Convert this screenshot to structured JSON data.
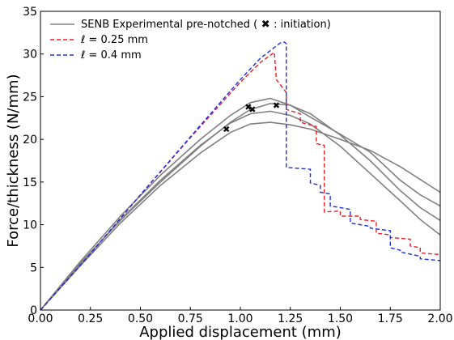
{
  "chart_data": {
    "type": "line",
    "xlabel": "Applied displacement (mm)",
    "ylabel": "Force/thickness (N/mm)",
    "xlim": [
      0,
      2.0
    ],
    "ylim": [
      0,
      35
    ],
    "x_ticks": [
      "0.00",
      "0.25",
      "0.50",
      "0.75",
      "1.00",
      "1.25",
      "1.50",
      "1.75",
      "2.00"
    ],
    "y_ticks": [
      "0",
      "5",
      "10",
      "15",
      "20",
      "25",
      "30",
      "35"
    ],
    "grid": false,
    "legend_position": "top-left",
    "legend": [
      {
        "label": "SENB Experimental pre-notched (",
        "marker_label": "✖",
        "label_tail": ": initiation)",
        "color": "#808080",
        "style": "solid"
      },
      {
        "label": "ℓ = 0.25 mm",
        "color": "#e8202a",
        "style": "dashed"
      },
      {
        "label": "ℓ = 0.4 mm",
        "color": "#1f2ee0",
        "style": "dashed"
      }
    ],
    "series": [
      {
        "name": "SENB Experimental pre-notched",
        "color": "#808080",
        "style": "solid",
        "x": [
          0,
          0.2,
          0.4,
          0.6,
          0.8,
          0.95,
          1.05,
          1.15,
          1.25,
          1.35,
          1.5,
          1.65,
          1.8,
          1.9,
          2.0
        ],
        "y": [
          0,
          5.5,
          10.5,
          15,
          19.2,
          22.0,
          23.5,
          24.2,
          24.0,
          23.0,
          20.5,
          17.5,
          14.0,
          12.0,
          10.5
        ]
      },
      {
        "name": "SENB Experimental pre-notched",
        "color": "#808080",
        "style": "solid",
        "x": [
          0,
          0.2,
          0.4,
          0.6,
          0.8,
          0.95,
          1.05,
          1.15,
          1.25,
          1.35,
          1.5,
          1.65,
          1.8,
          1.9,
          2.0
        ],
        "y": [
          0,
          5.2,
          10.2,
          14.6,
          18.4,
          20.8,
          21.8,
          22.0,
          21.7,
          21.2,
          20.0,
          18.7,
          16.8,
          15.3,
          13.8
        ]
      },
      {
        "name": "SENB Experimental pre-notched",
        "color": "#808080",
        "style": "solid",
        "x": [
          0,
          0.2,
          0.4,
          0.6,
          0.8,
          0.95,
          1.05,
          1.15,
          1.25,
          1.35,
          1.5,
          1.65,
          1.8,
          1.9,
          2.0
        ],
        "y": [
          0,
          5.7,
          11.0,
          15.8,
          20.0,
          22.8,
          24.3,
          24.8,
          24.0,
          22.6,
          20.6,
          18.5,
          15.2,
          13.5,
          12.2
        ]
      },
      {
        "name": "SENB Experimental pre-notched",
        "color": "#808080",
        "style": "solid",
        "x": [
          0,
          0.2,
          0.4,
          0.6,
          0.8,
          0.95,
          1.05,
          1.15,
          1.25,
          1.35,
          1.5,
          1.65,
          1.8,
          1.9,
          2.0
        ],
        "y": [
          0,
          5.4,
          10.6,
          15.2,
          19.3,
          21.9,
          23.0,
          23.3,
          22.8,
          21.8,
          19.2,
          16.0,
          12.8,
          10.6,
          8.8
        ]
      },
      {
        "name": "ℓ = 0.25 mm",
        "color": "#e8202a",
        "style": "dashed",
        "x": [
          0,
          0.25,
          0.5,
          0.75,
          1.0,
          1.1,
          1.17,
          1.18,
          1.23,
          1.23,
          1.3,
          1.3,
          1.38,
          1.38,
          1.42,
          1.42,
          1.5,
          1.5,
          1.6,
          1.6,
          1.68,
          1.68,
          1.75,
          1.75,
          1.85,
          1.85,
          1.9,
          1.9,
          2.0
        ],
        "y": [
          0,
          6.6,
          13.5,
          20.2,
          26.7,
          29.0,
          30.2,
          27.0,
          25.5,
          23.5,
          23.0,
          22.0,
          21.5,
          19.5,
          19.3,
          11.5,
          11.6,
          11.0,
          11.0,
          10.6,
          10.4,
          9.0,
          8.8,
          8.5,
          8.3,
          7.5,
          7.3,
          6.7,
          6.5
        ]
      },
      {
        "name": "ℓ = 0.4 mm",
        "color": "#1f2ee0",
        "style": "dashed",
        "x": [
          0,
          0.25,
          0.5,
          0.75,
          1.0,
          1.1,
          1.2,
          1.22,
          1.23,
          1.23,
          1.35,
          1.35,
          1.4,
          1.4,
          1.45,
          1.45,
          1.55,
          1.55,
          1.65,
          1.65,
          1.75,
          1.75,
          1.8,
          1.8,
          1.9,
          1.9,
          2.0
        ],
        "y": [
          0,
          6.6,
          13.5,
          20.3,
          27.0,
          29.5,
          31.3,
          31.4,
          31.2,
          16.7,
          16.5,
          14.9,
          14.6,
          13.8,
          13.6,
          12.2,
          11.8,
          10.2,
          9.8,
          9.6,
          9.3,
          7.3,
          7.0,
          6.8,
          6.3,
          6.0,
          5.8
        ]
      }
    ],
    "initiation_points": [
      {
        "x": 0.93,
        "y": 21.2
      },
      {
        "x": 1.04,
        "y": 23.8
      },
      {
        "x": 1.06,
        "y": 23.5
      },
      {
        "x": 1.18,
        "y": 24.0
      }
    ],
    "initiation_marker": "✖"
  }
}
